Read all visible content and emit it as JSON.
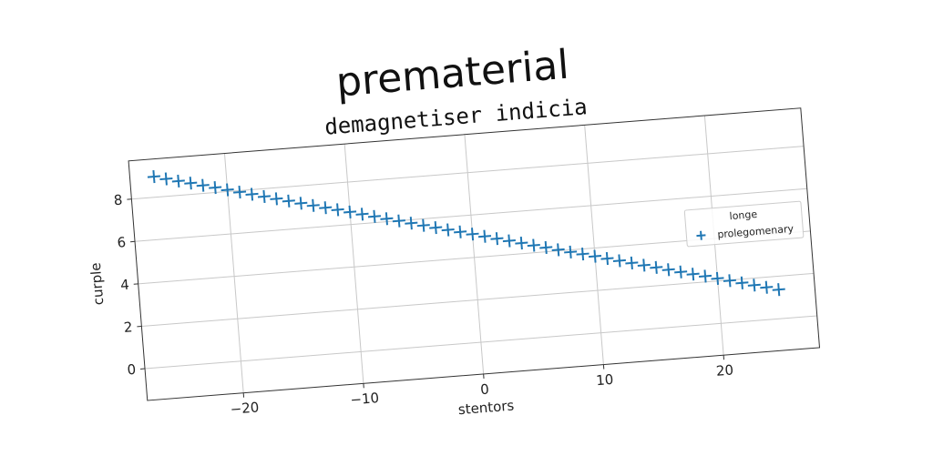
{
  "chart_data": {
    "type": "scatter",
    "suptitle": "prematerial",
    "title": "demagnetiser indicia",
    "xlabel": "stentors",
    "ylabel": "curple",
    "xlim": [
      -28,
      28
    ],
    "ylim": [
      -1.5,
      9.8
    ],
    "xticks": [
      -20,
      -10,
      0,
      10,
      20
    ],
    "yticks": [
      0,
      2,
      4,
      6,
      8
    ],
    "xtick_labels": [
      "−20",
      "−10",
      "0",
      "10",
      "20"
    ],
    "ytick_labels": [
      "0",
      "2",
      "4",
      "6",
      "8"
    ],
    "grid": true,
    "rotation_deg": -4.5,
    "legend": {
      "title": "longe",
      "placement": "center-right",
      "entries": [
        "prolegomenary"
      ]
    },
    "series": [
      {
        "name": "prolegomenary",
        "marker": "plus",
        "color": "#1f77b4",
        "x": [
          -26.0,
          -25.0,
          -24.0,
          -23.0,
          -22.0,
          -21.0,
          -20.0,
          -19.0,
          -18.0,
          -17.0,
          -16.0,
          -15.0,
          -14.0,
          -13.0,
          -12.0,
          -11.0,
          -10.0,
          -9.0,
          -8.0,
          -7.0,
          -6.0,
          -5.0,
          -4.0,
          -3.0,
          -2.0,
          -1.0,
          0.0,
          1.0,
          2.0,
          3.0,
          4.0,
          5.0,
          6.0,
          7.0,
          8.0,
          9.0,
          10.0,
          11.0,
          12.0,
          13.0,
          14.0,
          15.0,
          16.0,
          17.0,
          18.0,
          19.0,
          20.0,
          21.0,
          22.0,
          23.0,
          24.0,
          25.0
        ],
        "y": [
          8.97,
          8.82,
          8.67,
          8.53,
          8.38,
          8.23,
          8.08,
          7.93,
          7.78,
          7.63,
          7.48,
          7.33,
          7.18,
          7.03,
          6.88,
          6.74,
          6.59,
          6.44,
          6.29,
          6.14,
          5.99,
          5.84,
          5.69,
          5.54,
          5.39,
          5.25,
          5.1,
          4.95,
          4.8,
          4.65,
          4.5,
          4.35,
          4.2,
          4.05,
          3.9,
          3.76,
          3.61,
          3.46,
          3.31,
          3.16,
          3.01,
          2.86,
          2.71,
          2.56,
          2.41,
          2.27,
          2.12,
          1.97,
          1.82,
          1.67,
          1.52,
          1.37
        ]
      }
    ]
  }
}
